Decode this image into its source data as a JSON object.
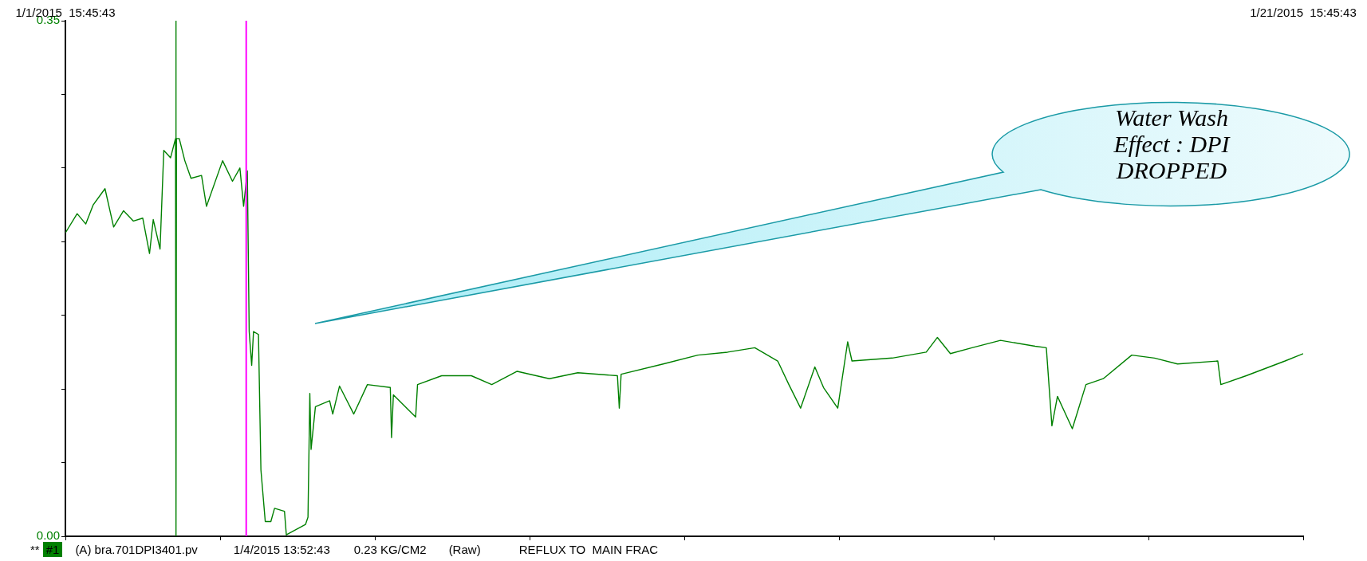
{
  "chart_data": {
    "type": "line",
    "xlim": [
      "2015-01-01T15:45:43",
      "2015-01-21T15:45:43"
    ],
    "xticks": [
      {
        "value": "2015-01-01T15:45:43",
        "label": "1/1/2015  15:45:43"
      },
      {
        "value": "2015-01-04T03:45:43",
        "label": null
      },
      {
        "value": "2015-01-06T15:45:43",
        "label": null
      },
      {
        "value": "2015-01-09T03:45:43",
        "label": null
      },
      {
        "value": "2015-01-11T15:45:43",
        "label": null
      },
      {
        "value": "2015-01-14T03:45:43",
        "label": null
      },
      {
        "value": "2015-01-16T15:45:43",
        "label": null
      },
      {
        "value": "2015-01-19T03:45:43",
        "label": null
      },
      {
        "value": "2015-01-21T15:45:43",
        "label": "1/21/2015  15:45:43"
      }
    ],
    "ylim": [
      0,
      0.35
    ],
    "yticks": [
      {
        "value": 0,
        "label": "0.00"
      },
      {
        "value": 0.05,
        "label": null
      },
      {
        "value": 0.1,
        "label": null
      },
      {
        "value": 0.15,
        "label": null
      },
      {
        "value": 0.2,
        "label": null
      },
      {
        "value": 0.25,
        "label": null
      },
      {
        "value": 0.3,
        "label": null
      },
      {
        "value": 0.35,
        "label": "0.35"
      }
    ],
    "legend": "bottom",
    "ref_lines": [
      {
        "axis": "x",
        "value": "2015-01-04T13:52:43",
        "color": "#ff00ff"
      }
    ],
    "annotations": [
      "Water Wash Effect : DPI DROPPED",
      "**",
      "(A) bra.701DPI3401.pv",
      "1/4/2015 13:52:43",
      "0.23 KG/CM2",
      "(Raw)",
      "REFLUX TO  MAIN FRAC"
    ],
    "series": [
      {
        "name": "#1",
        "color": "#008000",
        "x": [
          "2015-01-01T15:46",
          "2015-01-01T20:19",
          "2015-01-01T23:40",
          "2015-01-02T02:33",
          "2015-01-02T07:07",
          "2015-01-02T10:28",
          "2015-01-02T14:19",
          "2015-01-02T18:09",
          "2015-01-02T21:45",
          "2015-01-03T00:23",
          "2015-01-03T01:50",
          "2015-01-03T04:28",
          "2015-01-03T05:55",
          "2015-01-03T08:33",
          "2015-01-03T10:28",
          "2015-01-03T10:35",
          "2015-01-03T10:43",
          "2015-01-03T10:50",
          "2015-01-03T11:55",
          "2015-01-03T14:04",
          "2015-01-03T16:28",
          "2015-01-03T20:33",
          "2015-01-03T22:28",
          "2015-01-04T04:43",
          "2015-01-04T08:33",
          "2015-01-04T11:26",
          "2015-01-04T12:52",
          "2015-01-04T14:19",
          "2015-01-04T15:02",
          "2015-01-04T16:00",
          "2015-01-04T16:43",
          "2015-01-04T18:38",
          "2015-01-04T19:35",
          "2015-01-04T21:16",
          "2015-01-04T23:26",
          "2015-01-05T00:52",
          "2015-01-05T04:43",
          "2015-01-05T05:26",
          "2015-01-05T12:52",
          "2015-01-05T13:50",
          "2015-01-05T14:33",
          "2015-01-05T15:02",
          "2015-01-05T16:43",
          "2015-01-05T22:14",
          "2015-01-05T23:26",
          "2015-01-06T02:04",
          "2015-01-06T07:35",
          "2015-01-06T12:52",
          "2015-01-06T21:45",
          "2015-01-06T22:14",
          "2015-01-06T22:57",
          "2015-01-07T07:35",
          "2015-01-07T08:19",
          "2015-01-07T17:40",
          "2015-01-08T05:11",
          "2015-01-08T13:06",
          "2015-01-08T22:57",
          "2015-01-09T11:26",
          "2015-01-09T22:28",
          "2015-01-10T13:50",
          "2015-01-10T14:33",
          "2015-01-10T15:16",
          "2015-01-11T07:35",
          "2015-01-11T21:02",
          "2015-01-12T08:33",
          "2015-01-12T19:07",
          "2015-01-13T03:59",
          "2015-01-13T08:19",
          "2015-01-13T12:52",
          "2015-01-13T18:23",
          "2015-01-13T21:45",
          "2015-01-14T03:16",
          "2015-01-14T07:07",
          "2015-01-14T08:47",
          "2015-01-15T00:23",
          "2015-01-15T13:35",
          "2015-01-15T17:55",
          "2015-01-15T22:57",
          "2015-01-16T07:21",
          "2015-01-16T18:23",
          "2015-01-17T07:50",
          "2015-01-17T12:09",
          "2015-01-17T14:19",
          "2015-01-17T16:28",
          "2015-01-17T22:14",
          "2015-01-18T03:31",
          "2015-01-18T10:14",
          "2015-01-18T21:16",
          "2015-01-19T06:09",
          "2015-01-19T15:02",
          "2015-01-20T06:38",
          "2015-01-20T07:50",
          "2015-01-20T17:40",
          "2015-01-21T08:43",
          "2015-01-21T15:45"
        ],
        "values": [
          0.206,
          0.219,
          0.212,
          0.225,
          0.236,
          0.21,
          0.221,
          0.214,
          0.216,
          0.192,
          0.215,
          0.195,
          0.262,
          0.257,
          0.27,
          0.35,
          0,
          0.27,
          0.27,
          0.255,
          0.243,
          0.245,
          0.224,
          0.255,
          0.241,
          0.25,
          0.224,
          0.248,
          0.139,
          0.116,
          0.139,
          0.137,
          0.045,
          0.01,
          0.01,
          0.019,
          0.017,
          0.001,
          0.008,
          0.013,
          0.097,
          0.059,
          0.088,
          0.092,
          0.083,
          0.102,
          0.083,
          0.103,
          0.101,
          0.067,
          0.096,
          0.081,
          0.103,
          0.109,
          0.109,
          0.103,
          0.112,
          0.107,
          0.111,
          0.109,
          0.087,
          0.11,
          0.117,
          0.123,
          0.125,
          0.128,
          0.119,
          0.103,
          0.087,
          0.115,
          0.101,
          0.087,
          0.132,
          0.119,
          0.121,
          0.125,
          0.135,
          0.124,
          0.128,
          0.133,
          0.129,
          0.128,
          0.075,
          0.095,
          0.073,
          0.103,
          0.107,
          0.123,
          0.121,
          0.117,
          0.119,
          0.103,
          0.109,
          0.119,
          0.124
        ]
      }
    ]
  }
}
